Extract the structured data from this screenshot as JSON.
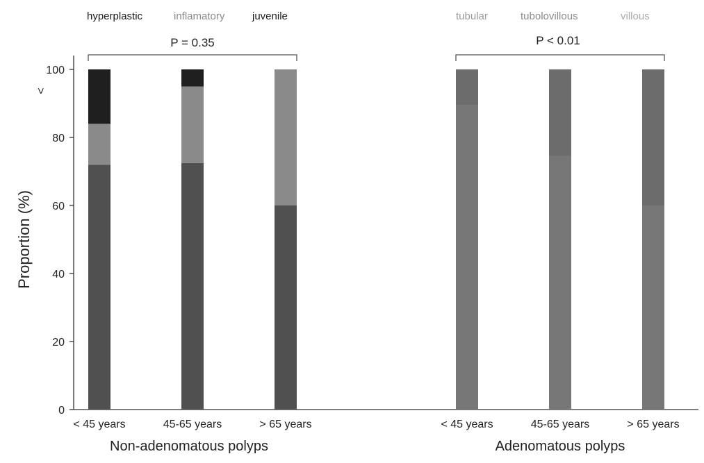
{
  "chart_data": {
    "type": "bar",
    "stacked": true,
    "ylabel": "Proportion (%)",
    "ylim": [
      0,
      100
    ],
    "yticks": [
      "0",
      "20",
      "40",
      "60",
      "80",
      "100"
    ],
    "y_marker": "<",
    "panels": [
      {
        "group_label": "Non-adenomatous polyps",
        "p_value": "P = 0.35",
        "categories": [
          "< 45 years",
          "45-65 years",
          "> 65 years"
        ],
        "series": [
          {
            "name": "hyperplastic",
            "values": [
              72,
              72.5,
              60
            ],
            "color": "#505050"
          },
          {
            "name": "inflamatory",
            "values": [
              12,
              22.5,
              40
            ],
            "color": "#8a8a8a"
          },
          {
            "name": "juvenile",
            "values": [
              16,
              5,
              0
            ],
            "color": "#1f1f1f"
          }
        ]
      },
      {
        "group_label": "Adenomatous polyps",
        "p_value": "P < 0.01",
        "categories": [
          "< 45 years",
          "45-65 years",
          "> 65 years"
        ],
        "series": [
          {
            "name": "tubular",
            "values": [
              89.5,
              74.5,
              60
            ],
            "color": "#777777"
          },
          {
            "name": "tubolovillous",
            "values": [
              10.5,
              25.5,
              40
            ],
            "color": "#6c6c6c"
          },
          {
            "name": "villous",
            "values": [
              0,
              0,
              0
            ],
            "color": "#9a9a9a"
          }
        ]
      }
    ],
    "legend_colors": [
      "#1a1a1a",
      "#8a8a8a",
      "#1a1a1a",
      "#9a9a9a",
      "#8a8a8a",
      "#aaaaaa"
    ]
  }
}
